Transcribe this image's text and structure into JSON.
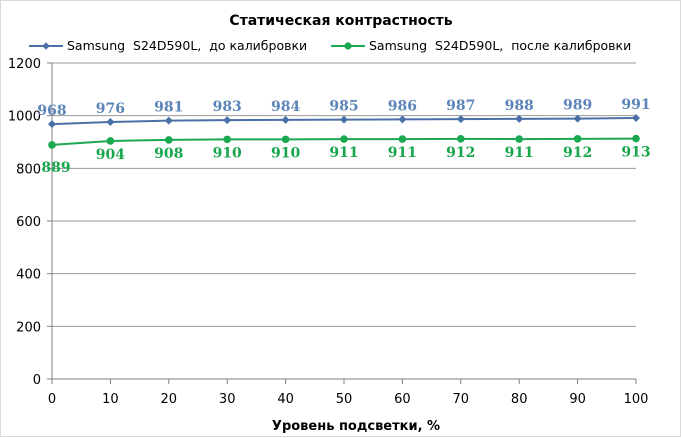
{
  "chart_data": {
    "type": "line",
    "title": "Статическая контрастность",
    "xlabel": "Уровень подсветки, %",
    "ylabel": "",
    "x": [
      0,
      10,
      20,
      30,
      40,
      50,
      60,
      70,
      80,
      90,
      100
    ],
    "xlim": [
      0,
      100
    ],
    "ylim": [
      0,
      1200
    ],
    "yticks": [
      0,
      200,
      400,
      600,
      800,
      1000,
      1200
    ],
    "grid": true,
    "legend_position": "top",
    "series": [
      {
        "name": "Samsung  S24D590L,  до калибровки",
        "color": "#4a70a8",
        "label_color": "#5b84b8",
        "marker": "diamond",
        "values": [
          968,
          976,
          981,
          983,
          984,
          985,
          986,
          987,
          988,
          989,
          991
        ]
      },
      {
        "name": "Samsung  S24D590L,  после калибровки",
        "color": "#1aa850",
        "label_color": "#17a64c",
        "marker": "circle",
        "values": [
          889,
          904,
          908,
          910,
          910,
          911,
          911,
          912,
          911,
          912,
          913
        ]
      }
    ]
  }
}
